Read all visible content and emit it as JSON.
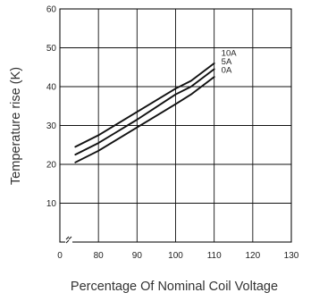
{
  "chart_data": {
    "type": "line",
    "title": "",
    "xlabel": "Percentage Of Nominal Coil Voltage",
    "ylabel": "Temperature rise (K)",
    "x_ticks": [
      "0",
      "80",
      "90",
      "100",
      "110",
      "120",
      "130"
    ],
    "y_ticks": [
      "10",
      "20",
      "30",
      "40",
      "50",
      "60"
    ],
    "xlim": [
      70,
      130
    ],
    "ylim": [
      0,
      60
    ],
    "x_axis_break": true,
    "grid": true,
    "legend": "inline labels at line ends",
    "line_color": "#111111",
    "series": [
      {
        "name": "10A",
        "x": [
          74,
          80,
          90,
          100,
          104,
          110
        ],
        "y": [
          24.5,
          27.5,
          33.5,
          39.5,
          41.5,
          46
        ]
      },
      {
        "name": "5A",
        "x": [
          74,
          80,
          90,
          100,
          104,
          110
        ],
        "y": [
          22.5,
          25.5,
          31.5,
          38,
          40,
          44.5
        ]
      },
      {
        "name": "0A",
        "x": [
          74,
          80,
          90,
          100,
          104,
          110
        ],
        "y": [
          20.5,
          23.5,
          29.5,
          35.5,
          38,
          42.5
        ]
      }
    ]
  }
}
